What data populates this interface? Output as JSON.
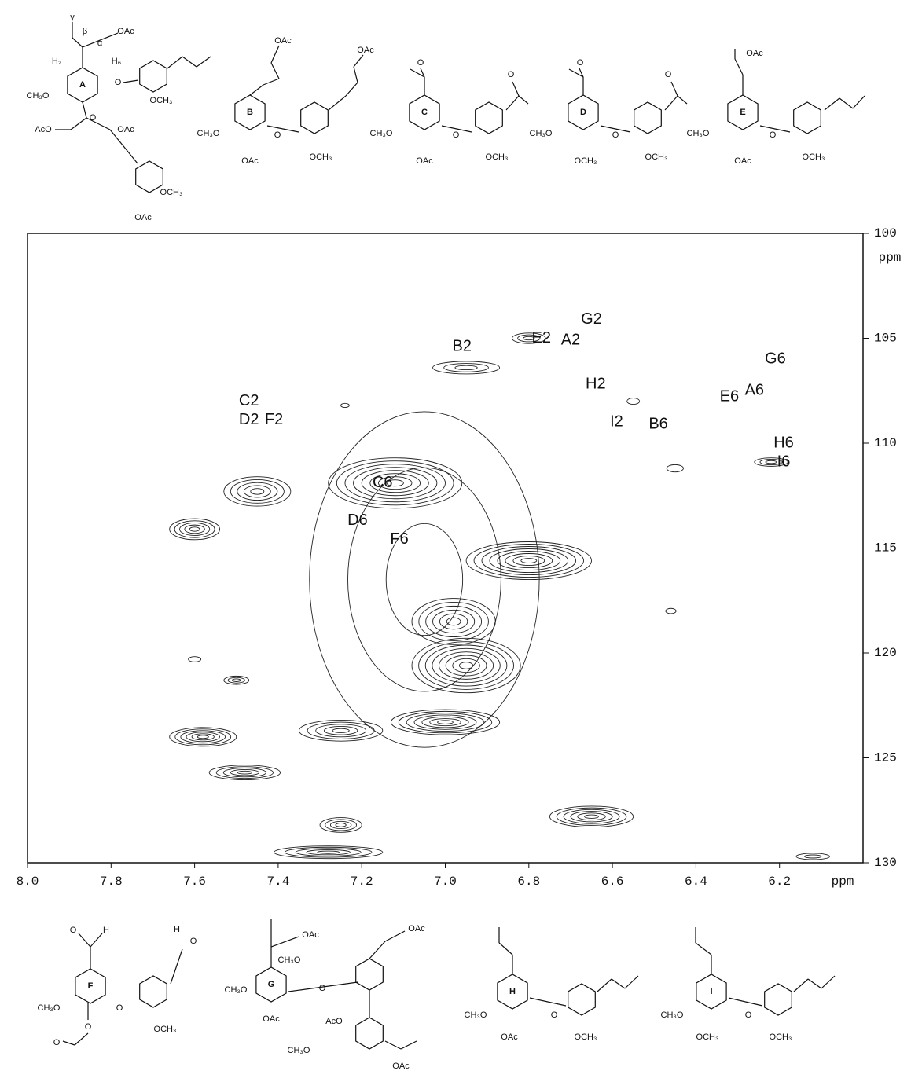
{
  "chart_data": {
    "type": "contour",
    "x_label": "ppm",
    "y_label": "ppm",
    "xlim": [
      8.0,
      6.0
    ],
    "ylim": [
      100,
      130
    ],
    "xticks": [
      {
        "value": 8.0,
        "label": "8.0"
      },
      7.8,
      7.6,
      7.4,
      7.2,
      {
        "value": 7.0,
        "label": "7.0"
      },
      6.8,
      6.6,
      6.4,
      6.2
    ],
    "yticks": [
      100,
      105,
      110,
      115,
      120,
      125,
      130
    ],
    "color": "#222222",
    "peaks": [
      {
        "x": 7.05,
        "y": 116.5,
        "dx": 0.55,
        "dy": 16,
        "levels": 3
      },
      {
        "x": 6.8,
        "y": 105.0,
        "dx": 0.08,
        "dy": 0.5,
        "levels": 3
      },
      {
        "x": 6.95,
        "y": 106.4,
        "dx": 0.16,
        "dy": 0.6,
        "levels": 3
      },
      {
        "x": 7.6,
        "y": 114.1,
        "dx": 0.12,
        "dy": 1.0,
        "levels": 5
      },
      {
        "x": 7.45,
        "y": 112.3,
        "dx": 0.16,
        "dy": 1.4,
        "levels": 5
      },
      {
        "x": 7.12,
        "y": 111.9,
        "dx": 0.32,
        "dy": 2.4,
        "levels": 8
      },
      {
        "x": 6.8,
        "y": 115.6,
        "dx": 0.3,
        "dy": 1.8,
        "levels": 8
      },
      {
        "x": 6.98,
        "y": 118.5,
        "dx": 0.2,
        "dy": 2.2,
        "levels": 6
      },
      {
        "x": 6.95,
        "y": 120.6,
        "dx": 0.26,
        "dy": 2.6,
        "levels": 8
      },
      {
        "x": 7.0,
        "y": 123.3,
        "dx": 0.26,
        "dy": 1.2,
        "levels": 7
      },
      {
        "x": 7.25,
        "y": 123.7,
        "dx": 0.2,
        "dy": 1.0,
        "levels": 5
      },
      {
        "x": 7.58,
        "y": 124.0,
        "dx": 0.16,
        "dy": 0.9,
        "levels": 6
      },
      {
        "x": 7.48,
        "y": 125.7,
        "dx": 0.17,
        "dy": 0.7,
        "levels": 5
      },
      {
        "x": 7.5,
        "y": 121.3,
        "dx": 0.06,
        "dy": 0.4,
        "levels": 3
      },
      {
        "x": 7.25,
        "y": 128.2,
        "dx": 0.1,
        "dy": 0.7,
        "levels": 4
      },
      {
        "x": 7.28,
        "y": 129.5,
        "dx": 0.26,
        "dy": 0.6,
        "levels": 5
      },
      {
        "x": 6.65,
        "y": 127.8,
        "dx": 0.2,
        "dy": 1.0,
        "levels": 6
      },
      {
        "x": 6.22,
        "y": 110.9,
        "dx": 0.08,
        "dy": 0.4,
        "levels": 3
      },
      {
        "x": 6.12,
        "y": 129.7,
        "dx": 0.08,
        "dy": 0.3,
        "levels": 2
      },
      {
        "x": 7.6,
        "y": 120.3,
        "dx": 0.03,
        "dy": 0.25,
        "levels": 1
      },
      {
        "x": 6.45,
        "y": 111.2,
        "dx": 0.04,
        "dy": 0.35,
        "levels": 1
      },
      {
        "x": 6.46,
        "y": 118.0,
        "dx": 0.025,
        "dy": 0.25,
        "levels": 1
      },
      {
        "x": 6.55,
        "y": 108.0,
        "dx": 0.03,
        "dy": 0.3,
        "levels": 1
      },
      {
        "x": 7.24,
        "y": 108.2,
        "dx": 0.02,
        "dy": 0.2,
        "levels": 1
      }
    ],
    "annotations": [
      {
        "text": "G2",
        "x": 6.65,
        "y": 104.1
      },
      {
        "text": "E2",
        "x": 6.77,
        "y": 105.0
      },
      {
        "text": "A2",
        "x": 6.7,
        "y": 105.1
      },
      {
        "text": "B2",
        "x": 6.96,
        "y": 105.4
      },
      {
        "text": "G6",
        "x": 6.21,
        "y": 106.0
      },
      {
        "text": "H2",
        "x": 6.64,
        "y": 107.2
      },
      {
        "text": "E6",
        "x": 6.32,
        "y": 107.8
      },
      {
        "text": "A6",
        "x": 6.26,
        "y": 107.5
      },
      {
        "text": "C2",
        "x": 7.47,
        "y": 108.0
      },
      {
        "text": "D2",
        "x": 7.47,
        "y": 108.9
      },
      {
        "text": "F2",
        "x": 7.41,
        "y": 108.9
      },
      {
        "text": "I2",
        "x": 6.59,
        "y": 109.0
      },
      {
        "text": "B6",
        "x": 6.49,
        "y": 109.1
      },
      {
        "text": "H6",
        "x": 6.19,
        "y": 110.0
      },
      {
        "text": "I6",
        "x": 6.19,
        "y": 110.9
      },
      {
        "text": "C6",
        "x": 7.15,
        "y": 111.9
      },
      {
        "text": "D6",
        "x": 7.21,
        "y": 113.7
      },
      {
        "text": "F6",
        "x": 7.11,
        "y": 114.6
      }
    ]
  },
  "structures": [
    {
      "label": "A",
      "groups": [
        "γ",
        "β",
        "α",
        "OAc",
        "H₂",
        "H₆",
        "CH₃O",
        "O",
        "O",
        "AcO",
        "OAc",
        "OCH₃",
        "OCH₃",
        "OAc"
      ]
    },
    {
      "label": "B",
      "groups": [
        "OAc",
        "OAc",
        "CH₃O",
        "O",
        "OAc",
        "OCH₃"
      ]
    },
    {
      "label": "C",
      "groups": [
        "O",
        "O",
        "CH₃O",
        "O",
        "OAc",
        "OCH₃"
      ]
    },
    {
      "label": "D",
      "groups": [
        "O",
        "O",
        "CH₃O",
        "O",
        "OCH₃",
        "OCH₃"
      ]
    },
    {
      "label": "E",
      "groups": [
        "OAc",
        "CH₃O",
        "O",
        "OAc",
        "OCH₃"
      ]
    },
    {
      "label": "F",
      "groups": [
        "O",
        "H",
        "H",
        "O",
        "CH₃O",
        "O",
        "O",
        "O",
        "OCH₃"
      ]
    },
    {
      "label": "G",
      "groups": [
        "OAc",
        "CH₃O",
        "CH₃O",
        "O",
        "OAc",
        "OAc",
        "AcO",
        "CH₃O",
        "OAc"
      ]
    },
    {
      "label": "H",
      "groups": [
        "CH₃O",
        "O",
        "OAc",
        "OCH₃"
      ]
    },
    {
      "label": "I",
      "groups": [
        "CH₃O",
        "O",
        "OCH₃",
        "OCH₃"
      ]
    }
  ]
}
